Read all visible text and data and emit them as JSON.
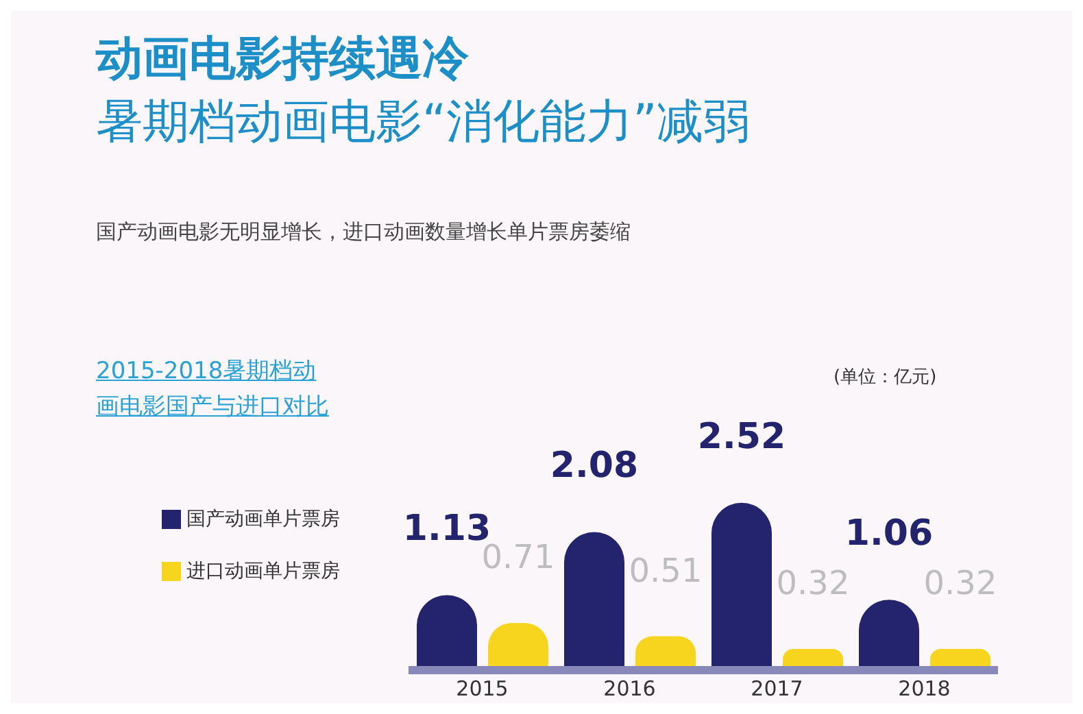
{
  "chart_data": {
    "type": "bar",
    "title": "动画电影持续遇冷",
    "subtitle": "暑期档动画电影“消化能力”减弱",
    "annotations": [
      "国产动画电影无明显增长，进口动画数量增长单片票房萎缩",
      "2015-2018暑期档动画电影国产与进口对比",
      "(单位：亿元)"
    ],
    "categories": [
      "2015",
      "2016",
      "2017",
      "2018"
    ],
    "series": [
      {
        "name": "国产动画单片票房",
        "color": "#24246e",
        "values": [
          1.13,
          2.08,
          2.52,
          1.06
        ]
      },
      {
        "name": "进口动画单片票房",
        "color": "#f7d51e",
        "values": [
          0.71,
          0.51,
          0.32,
          0.32
        ]
      }
    ],
    "data_labels": true,
    "legend": "left",
    "grid": false
  }
}
